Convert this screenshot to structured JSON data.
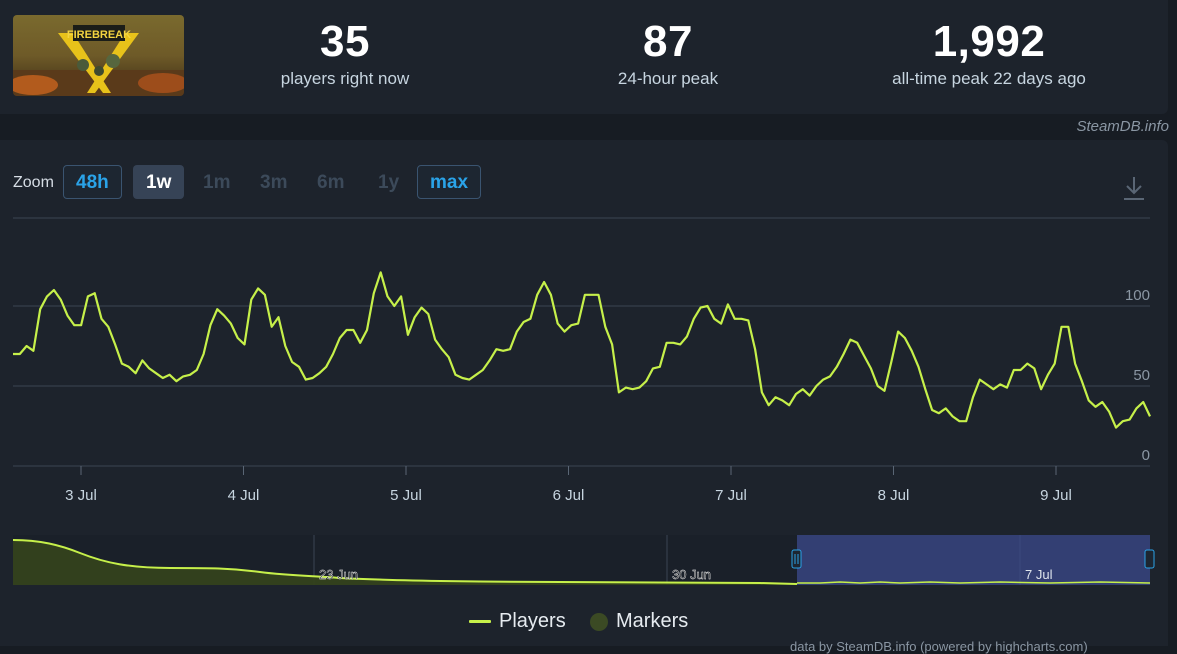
{
  "header": {
    "game_art": "Firebreak game capsule art",
    "stats": [
      {
        "value": "35",
        "label": "players right now"
      },
      {
        "value": "87",
        "label": "24-hour peak"
      },
      {
        "value": "1,992",
        "label": "all-time peak 22 days ago"
      }
    ],
    "credit": "SteamDB.info"
  },
  "zoom": {
    "label": "Zoom",
    "buttons": [
      {
        "label": "48h",
        "state": "available"
      },
      {
        "label": "1w",
        "state": "selected"
      },
      {
        "label": "1m",
        "state": "disabled"
      },
      {
        "label": "3m",
        "state": "disabled"
      },
      {
        "label": "6m",
        "state": "disabled"
      },
      {
        "label": "1y",
        "state": "disabled"
      },
      {
        "label": "max",
        "state": "available"
      }
    ],
    "download_icon": "download-icon"
  },
  "chart_data": {
    "type": "line",
    "ylim": [
      0,
      155
    ],
    "yticks": [
      0,
      50,
      100
    ],
    "x_tick_labels": [
      "3 Jul",
      "4 Jul",
      "5 Jul",
      "6 Jul",
      "7 Jul",
      "8 Jul",
      "9 Jul"
    ],
    "series": [
      {
        "name": "Players",
        "color": "#c6f04a",
        "values": [
          70,
          70,
          75,
          72,
          98,
          106,
          110,
          104,
          94,
          88,
          88,
          106,
          108,
          92,
          87,
          76,
          64,
          62,
          58,
          66,
          61,
          58,
          55,
          57,
          53,
          56,
          57,
          60,
          70,
          88,
          98,
          94,
          89,
          80,
          76,
          104,
          111,
          107,
          87,
          93,
          75,
          65,
          62,
          54,
          55,
          58,
          62,
          70,
          80,
          85,
          85,
          77,
          85,
          108,
          121,
          106,
          100,
          106,
          82,
          93,
          99,
          95,
          79,
          73,
          68,
          57,
          55,
          54,
          57,
          60,
          66,
          73,
          72,
          73,
          84,
          90,
          92,
          107,
          115,
          107,
          89,
          84,
          88,
          89,
          107,
          107,
          107,
          87,
          76,
          46,
          49,
          48,
          49,
          53,
          61,
          62,
          77,
          77,
          76,
          81,
          92,
          99,
          100,
          92,
          89,
          101,
          92,
          92,
          91,
          73,
          46,
          38,
          43,
          41,
          38,
          45,
          48,
          44,
          50,
          54,
          56,
          62,
          70,
          79,
          77,
          69,
          61,
          50,
          47,
          65,
          84,
          80,
          72,
          62,
          48,
          35,
          33,
          36,
          31,
          28,
          28,
          43,
          54,
          51,
          48,
          51,
          49,
          60,
          60,
          64,
          61,
          48,
          57,
          64,
          87,
          87,
          64,
          53,
          41,
          37,
          40,
          34,
          24,
          28,
          29,
          36,
          40,
          31
        ]
      }
    ],
    "navigator": {
      "labels": [
        "23 Jun",
        "30 Jun",
        "7 Jul"
      ]
    },
    "legend": [
      "Players",
      "Markers"
    ],
    "legend_position": "bottom-center"
  },
  "footnote": "data by SteamDB.info (powered by highcharts.com)"
}
